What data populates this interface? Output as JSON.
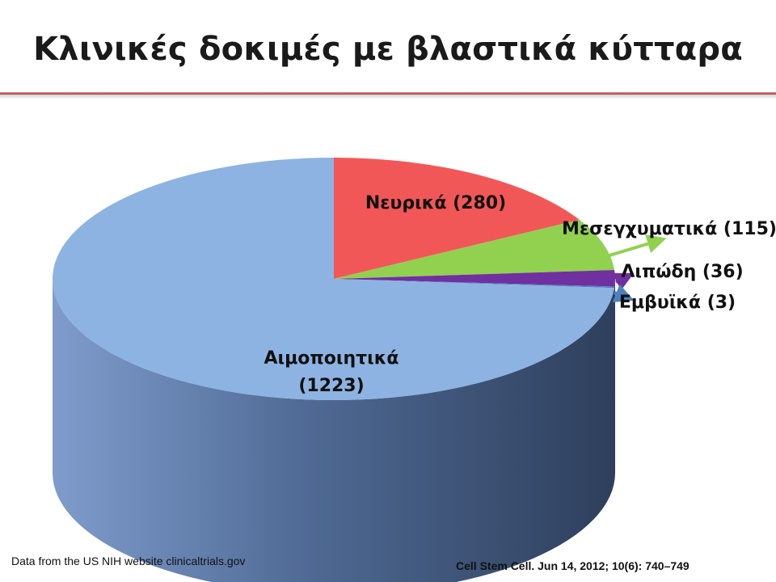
{
  "title": "Κλινικές δοκιμές με βλαστικά κύτταρα",
  "footer": {
    "source_note": "Data from the US NIH website clinicaltrials.gov",
    "citation": "Cell Stem Cell. Jun 14, 2012; 10(6): 740–749"
  },
  "chart_data": {
    "type": "pie",
    "title": "Κλινικές δοκιμές με βλαστικά κύτταρα",
    "style": "3d-pie",
    "slices": [
      {
        "name": "Νευρικά",
        "value": 280,
        "label": "Νευρικά (280)",
        "color": "#f25757",
        "label_placement": "inside"
      },
      {
        "name": "Μεσεγχυματικά",
        "value": 115,
        "label": "Μεσεγχυματικά (115)",
        "color": "#92d050",
        "label_placement": "outside-arrow"
      },
      {
        "name": "Λιπώδη",
        "value": 36,
        "label": "Λιπώδη (36)",
        "color": "#7030a0",
        "label_placement": "outside-arrow"
      },
      {
        "name": "Εμβυϊκά",
        "value": 3,
        "label": "Εμβυϊκά (3)",
        "color": "#4f81bd",
        "label_placement": "outside-arrow"
      },
      {
        "name": "Αιμοποιητικά",
        "value": 1223,
        "label_lines": [
          "Αιμοποιητικά",
          "(1223)"
        ],
        "color": "#8db3e2",
        "label_placement": "inside"
      }
    ]
  }
}
